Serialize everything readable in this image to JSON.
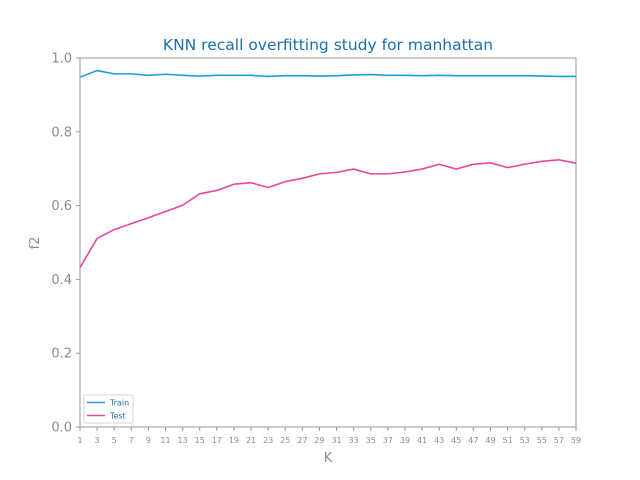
{
  "chart_data": {
    "type": "line",
    "title": "KNN recall overfitting study for manhattan",
    "xlabel": "K",
    "ylabel": "f2",
    "x": [
      1,
      3,
      5,
      7,
      9,
      11,
      13,
      15,
      17,
      19,
      21,
      23,
      25,
      27,
      29,
      31,
      33,
      35,
      37,
      39,
      41,
      43,
      45,
      47,
      49,
      51,
      53,
      55,
      57,
      59
    ],
    "xlim": [
      1,
      59
    ],
    "ylim": [
      0.0,
      1.0
    ],
    "yticks": [
      "0.0",
      "0.2",
      "0.4",
      "0.6",
      "0.8",
      "1.0"
    ],
    "grid": false,
    "legend_position": "lower-left",
    "series": [
      {
        "name": "Train",
        "color": "#1f9fd6",
        "values": [
          0.948,
          0.966,
          0.957,
          0.957,
          0.953,
          0.956,
          0.953,
          0.951,
          0.953,
          0.953,
          0.953,
          0.95,
          0.952,
          0.952,
          0.951,
          0.952,
          0.954,
          0.955,
          0.953,
          0.953,
          0.952,
          0.953,
          0.952,
          0.952,
          0.952,
          0.952,
          0.952,
          0.951,
          0.95,
          0.95
        ]
      },
      {
        "name": "Test",
        "color": "#e8489a",
        "values": [
          0.432,
          0.511,
          0.535,
          0.551,
          0.567,
          0.584,
          0.601,
          0.632,
          0.641,
          0.658,
          0.662,
          0.649,
          0.665,
          0.674,
          0.686,
          0.69,
          0.699,
          0.686,
          0.686,
          0.691,
          0.699,
          0.712,
          0.699,
          0.712,
          0.716,
          0.703,
          0.712,
          0.72,
          0.724,
          0.715
        ]
      }
    ]
  }
}
